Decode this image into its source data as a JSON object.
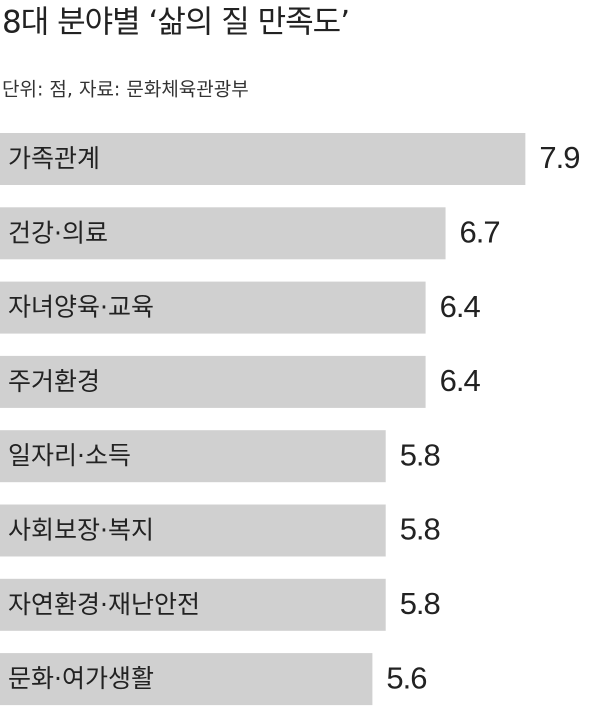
{
  "chart_data": {
    "type": "bar",
    "title": "8대 분야별 ‘삶의 질 만족도’",
    "subtitle": "단위: 점, 자료: 문화체육관광부",
    "categories": [
      "가족관계",
      "건강·의료",
      "자녀양육·교육",
      "주거환경",
      "일자리·소득",
      "사회보장·복지",
      "자연환경·재난안전",
      "문화·여가생활"
    ],
    "values": [
      7.9,
      6.7,
      6.4,
      6.4,
      5.8,
      5.8,
      5.8,
      5.6
    ],
    "color": "#d0d0d0"
  }
}
